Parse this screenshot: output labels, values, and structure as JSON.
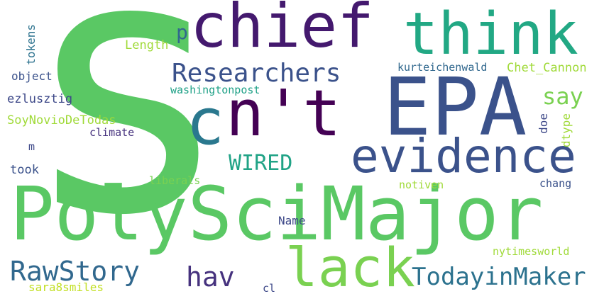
{
  "words": [
    {
      "text": "s",
      "color": "#5ac864"
    },
    {
      "text": "PolySciMajor",
      "color": "#5ac864"
    },
    {
      "text": "chief",
      "color": "#44196e"
    },
    {
      "text": "think",
      "color": "#22a884"
    },
    {
      "text": "EPA",
      "color": "#3b528b"
    },
    {
      "text": "n't",
      "color": "#440154"
    },
    {
      "text": "c",
      "color": "#2a788e"
    },
    {
      "text": "evidence",
      "color": "#3b528b"
    },
    {
      "text": "lack",
      "color": "#7ad151"
    },
    {
      "text": "RawStory",
      "color": "#31688e"
    },
    {
      "text": "TodayinMaker",
      "color": "#2c728e"
    },
    {
      "text": "Researchers",
      "color": "#3b528b"
    },
    {
      "text": "hav",
      "color": "#46327e"
    },
    {
      "text": "say",
      "color": "#7ad151"
    },
    {
      "text": "WIRED",
      "color": "#20a386"
    },
    {
      "text": "p",
      "color": "#31688e"
    },
    {
      "text": "Length",
      "color": "#a0da39"
    },
    {
      "text": "kurteichenwald",
      "color": "#31688e"
    },
    {
      "text": "Chet_Cannon",
      "color": "#a0da39"
    },
    {
      "text": "washingtonpost",
      "color": "#1fa187"
    },
    {
      "text": "object",
      "color": "#3b528b"
    },
    {
      "text": "ezlusztig",
      "color": "#3e4989"
    },
    {
      "text": "SoyNovioDeTodas",
      "color": "#a0da39"
    },
    {
      "text": "climate",
      "color": "#46327e"
    },
    {
      "text": "m",
      "color": "#3e4989"
    },
    {
      "text": "took",
      "color": "#3b528b"
    },
    {
      "text": "liberals",
      "color": "#7ad151"
    },
    {
      "text": "notiven",
      "color": "#a0da39"
    },
    {
      "text": "chang",
      "color": "#3b528b"
    },
    {
      "text": "Name",
      "color": "#3e4989"
    },
    {
      "text": "nytimesworld",
      "color": "#a0da39"
    },
    {
      "text": "sara8smiles",
      "color": "#c2df23"
    },
    {
      "text": "cl",
      "color": "#3e4989"
    },
    {
      "text": "doe",
      "color": "#3e4989"
    },
    {
      "text": "dtype",
      "color": "#a0da39"
    },
    {
      "text": "tokens",
      "color": "#2c728e"
    }
  ]
}
